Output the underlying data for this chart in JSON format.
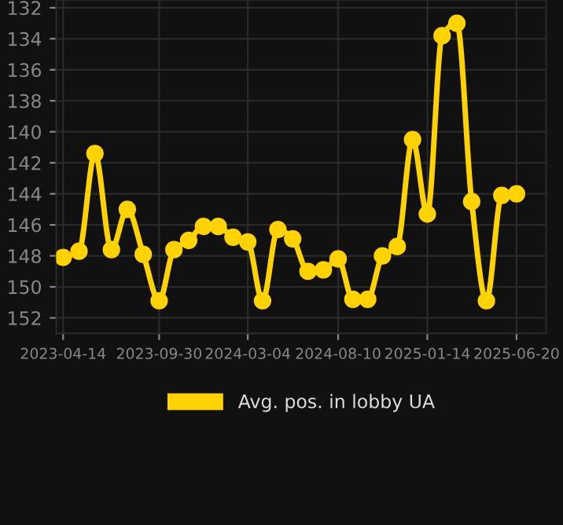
{
  "chart_data": {
    "type": "line",
    "x": [
      "2023-04-14",
      "2023-05-12",
      "2023-06-09",
      "2023-07-08",
      "2023-08-05",
      "2023-09-02",
      "2023-09-30",
      "2023-10-26",
      "2023-11-21",
      "2023-12-17",
      "2024-01-12",
      "2024-02-07",
      "2024-03-04",
      "2024-03-30",
      "2024-04-26",
      "2024-05-22",
      "2024-06-18",
      "2024-07-15",
      "2024-08-10",
      "2024-09-05",
      "2024-10-01",
      "2024-10-27",
      "2024-11-22",
      "2024-12-19",
      "2025-01-14",
      "2025-02-09",
      "2025-03-07",
      "2025-04-02",
      "2025-04-28",
      "2025-05-25",
      "2025-06-20"
    ],
    "series": [
      {
        "name": "Avg. pos. in lobby UA",
        "color": "#ffd200",
        "values": [
          148.1,
          147.7,
          141.4,
          147.6,
          145.0,
          147.9,
          150.9,
          147.6,
          147.0,
          146.1,
          146.1,
          146.8,
          147.1,
          150.9,
          146.3,
          146.9,
          149.0,
          148.9,
          148.2,
          150.8,
          150.8,
          148.0,
          147.4,
          140.5,
          145.3,
          133.8,
          133.0,
          144.5,
          150.9,
          144.1,
          144.0
        ]
      }
    ],
    "ylim": [
      153,
      131.5
    ],
    "yticks": [
      132,
      134,
      136,
      138,
      140,
      142,
      144,
      146,
      148,
      150,
      152
    ],
    "xlim": [
      "2023-04-02",
      "2025-08-11"
    ],
    "xticks": [
      "2023-04-14",
      "2023-09-30",
      "2024-03-04",
      "2024-08-10",
      "2025-01-14",
      "2025-06-20"
    ],
    "grid": true,
    "legend": "bottom",
    "marker": "circle",
    "line_style": "solid"
  }
}
